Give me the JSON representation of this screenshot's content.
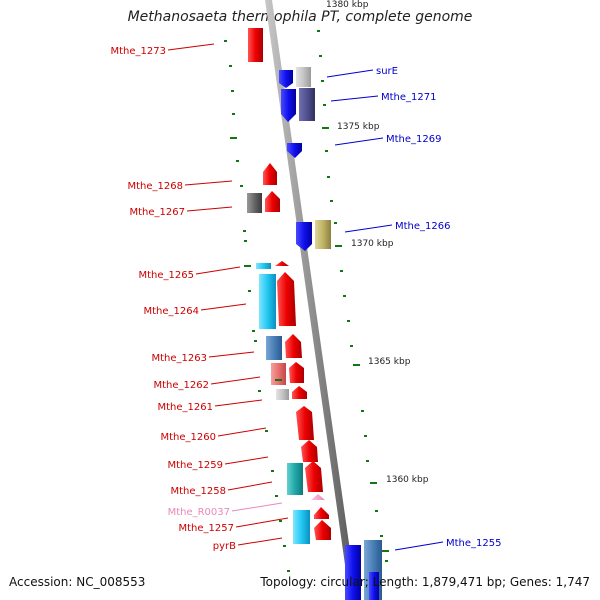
{
  "title": "Methanosaeta thermophila PT, complete genome",
  "footer": {
    "accession": "Accession: NC_008553",
    "summary": "Topology: circular; Length: 1,879,471 bp; Genes: 1,747"
  },
  "colors": {
    "left_label": "#cc0000",
    "right_label": "#0000cc",
    "rna_label": "#e68ab8",
    "tick": "#117711",
    "backbone": "#8a8a8a"
  },
  "scale_labels": [
    {
      "id": "kbp-1380",
      "text": "1380 kbp"
    },
    {
      "id": "kbp-1375",
      "text": "1375 kbp"
    },
    {
      "id": "kbp-1370",
      "text": "1370 kbp"
    },
    {
      "id": "kbp-1365",
      "text": "1365 kbp"
    },
    {
      "id": "kbp-1360",
      "text": "1360 kbp"
    }
  ],
  "left_labels": [
    {
      "id": "mthe-1273",
      "text": "Mthe_1273"
    },
    {
      "id": "mthe-1268",
      "text": "Mthe_1268"
    },
    {
      "id": "mthe-1267",
      "text": "Mthe_1267"
    },
    {
      "id": "mthe-1265",
      "text": "Mthe_1265"
    },
    {
      "id": "mthe-1264",
      "text": "Mthe_1264"
    },
    {
      "id": "mthe-1263",
      "text": "Mthe_1263"
    },
    {
      "id": "mthe-1262",
      "text": "Mthe_1262"
    },
    {
      "id": "mthe-1261",
      "text": "Mthe_1261"
    },
    {
      "id": "mthe-1260",
      "text": "Mthe_1260"
    },
    {
      "id": "mthe-1259",
      "text": "Mthe_1259"
    },
    {
      "id": "mthe-1258",
      "text": "Mthe_1258"
    },
    {
      "id": "mthe-r0037",
      "text": "Mthe_R0037"
    },
    {
      "id": "mthe-1257",
      "text": "Mthe_1257"
    },
    {
      "id": "pyrb",
      "text": "pyrB"
    }
  ],
  "right_labels": [
    {
      "id": "sure",
      "text": "surE"
    },
    {
      "id": "mthe-1271",
      "text": "Mthe_1271"
    },
    {
      "id": "mthe-1269",
      "text": "Mthe_1269"
    },
    {
      "id": "mthe-1266",
      "text": "Mthe_1266"
    },
    {
      "id": "mthe-1255",
      "text": "Mthe_1255"
    }
  ]
}
